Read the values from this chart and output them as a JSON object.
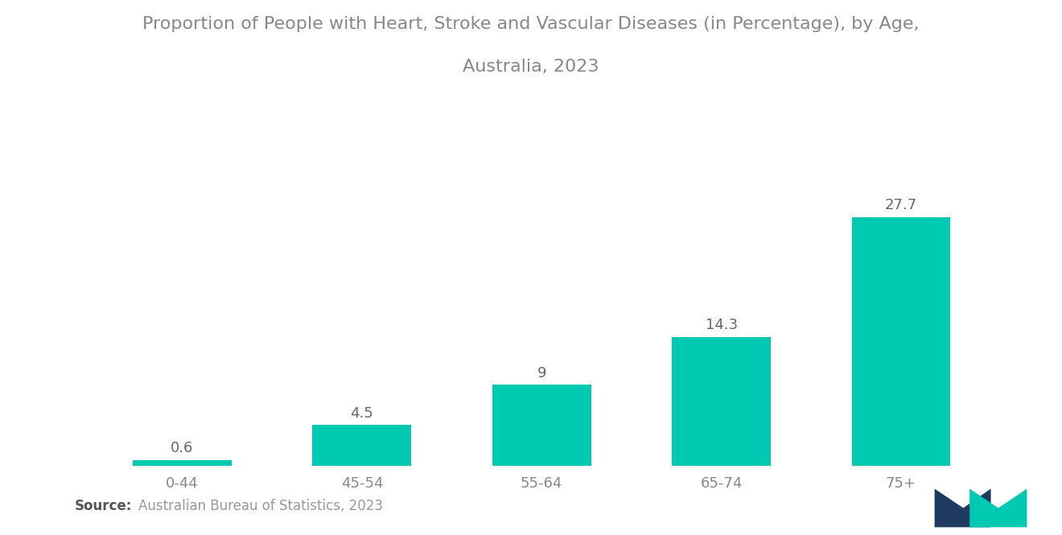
{
  "title_line1": "Proportion of People with Heart, Stroke and Vascular Diseases (in Percentage), by Age,",
  "title_line2": "Australia, 2023",
  "categories": [
    "0-44",
    "45-54",
    "55-64",
    "65-74",
    "75+"
  ],
  "values": [
    0.6,
    4.5,
    9,
    14.3,
    27.7
  ],
  "bar_color": "#00C9B1",
  "background_color": "#ffffff",
  "ylim": [
    0,
    31
  ],
  "source_bold": "Source:",
  "source_text": "Australian Bureau of Statistics, 2023",
  "title_fontsize": 16,
  "label_fontsize": 13,
  "tick_fontsize": 13,
  "source_fontsize": 12,
  "bar_width": 0.55,
  "title_color": "#888888",
  "tick_color": "#888888",
  "label_color": "#666666"
}
